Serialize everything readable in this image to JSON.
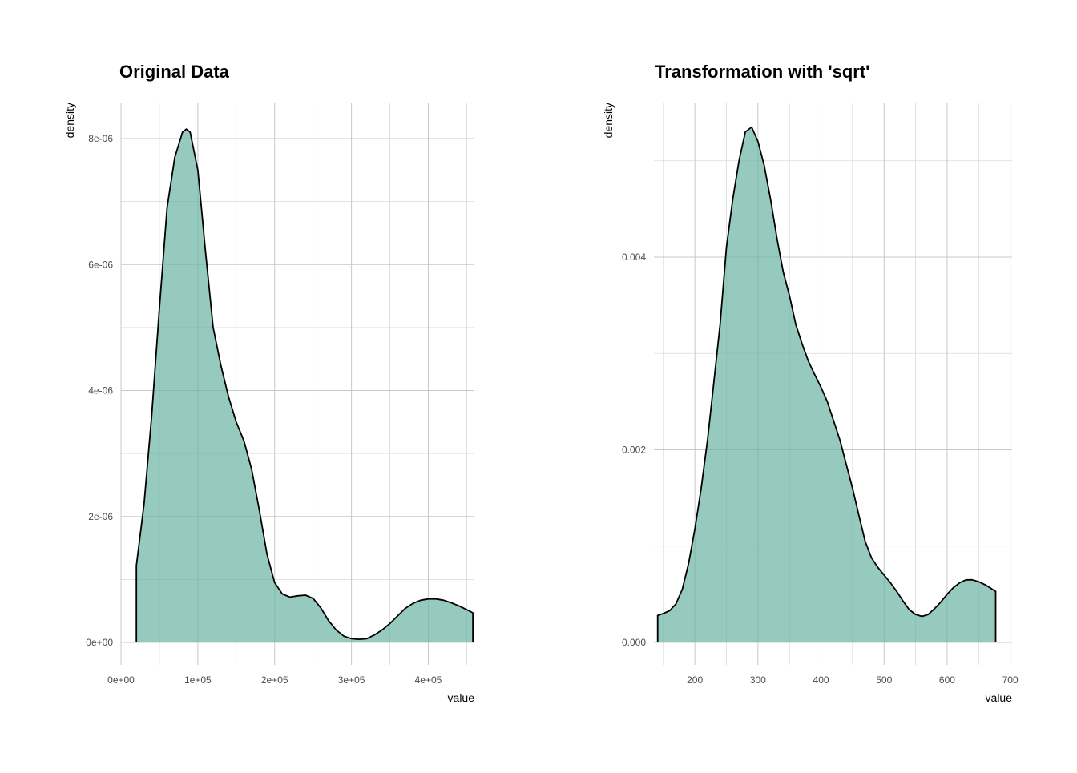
{
  "chart_data": [
    {
      "type": "area",
      "title": "Original Data",
      "xlabel": "value",
      "ylabel": "density",
      "xlim": [
        0,
        460000.0
      ],
      "ylim": [
        0,
        8.2e-06
      ],
      "x_ticks": [
        0,
        100000,
        200000,
        300000,
        400000
      ],
      "x_tick_labels": [
        "0e+00",
        "1e+05",
        "2e+05",
        "3e+05",
        "4e+05"
      ],
      "y_ticks": [
        0,
        2e-06,
        4e-06,
        6e-06,
        8e-06
      ],
      "y_tick_labels": [
        "0e+00",
        "2e-06",
        "4e-06",
        "6e-06",
        "8e-06"
      ],
      "grid": true,
      "fill_color": "#69b3a2",
      "line_color": "#000000",
      "series": [
        {
          "x": [
            20000,
            30000,
            40000,
            50000,
            60000,
            70000,
            80000,
            85000,
            90000,
            100000,
            110000,
            120000,
            130000,
            140000,
            150000,
            160000,
            170000,
            180000,
            190000,
            200000,
            210000,
            220000,
            230000,
            240000,
            250000,
            260000,
            270000,
            280000,
            290000,
            300000,
            310000,
            320000,
            330000,
            340000,
            350000,
            360000,
            370000,
            380000,
            390000,
            400000,
            410000,
            420000,
            430000,
            440000,
            450000,
            458000
          ],
          "y": [
            1.22e-06,
            2.2e-06,
            3.6e-06,
            5.3e-06,
            6.9e-06,
            7.7e-06,
            8.1e-06,
            8.15e-06,
            8.1e-06,
            7.5e-06,
            6.2e-06,
            5e-06,
            4.4e-06,
            3.9e-06,
            3.5e-06,
            3.2e-06,
            2.75e-06,
            2.1e-06,
            1.4e-06,
            9.5e-07,
            7.7e-07,
            7.2e-07,
            7.4e-07,
            7.5e-07,
            7e-07,
            5.5e-07,
            3.5e-07,
            2e-07,
            1e-07,
            6e-08,
            5e-08,
            6e-08,
            1.2e-07,
            2e-07,
            3e-07,
            4.2e-07,
            5.4e-07,
            6.2e-07,
            6.7e-07,
            6.9e-07,
            6.9e-07,
            6.7e-07,
            6.3e-07,
            5.8e-07,
            5.2e-07,
            4.7e-07
          ]
        }
      ]
    },
    {
      "type": "area",
      "title": "Transformation with 'sqrt'",
      "xlabel": "value",
      "ylabel": "density",
      "xlim": [
        135,
        703
      ],
      "ylim": [
        0,
        0.0054
      ],
      "x_ticks": [
        200,
        300,
        400,
        500,
        600,
        700
      ],
      "x_tick_labels": [
        "200",
        "300",
        "400",
        "500",
        "600",
        "700"
      ],
      "y_ticks": [
        0,
        0.002,
        0.004
      ],
      "y_tick_labels": [
        "0.000",
        "0.002",
        "0.004"
      ],
      "grid": true,
      "fill_color": "#69b3a2",
      "line_color": "#000000",
      "series": [
        {
          "x": [
            141,
            150,
            160,
            170,
            180,
            190,
            200,
            210,
            220,
            230,
            240,
            250,
            260,
            270,
            280,
            290,
            300,
            310,
            320,
            330,
            340,
            350,
            360,
            370,
            380,
            390,
            400,
            410,
            420,
            430,
            440,
            450,
            460,
            470,
            480,
            490,
            500,
            510,
            520,
            530,
            540,
            550,
            560,
            570,
            580,
            590,
            600,
            610,
            620,
            630,
            640,
            650,
            660,
            670,
            677
          ],
          "y": [
            0.00028,
            0.0003,
            0.00033,
            0.0004,
            0.00055,
            0.00082,
            0.00118,
            0.0016,
            0.0021,
            0.0027,
            0.0033,
            0.0041,
            0.0046,
            0.005,
            0.0053,
            0.00535,
            0.0052,
            0.00495,
            0.0046,
            0.0042,
            0.00385,
            0.0036,
            0.0033,
            0.0031,
            0.00292,
            0.00278,
            0.00265,
            0.0025,
            0.0023,
            0.0021,
            0.00185,
            0.0016,
            0.00132,
            0.00105,
            0.00088,
            0.00078,
            0.0007,
            0.00062,
            0.00053,
            0.00043,
            0.00034,
            0.00029,
            0.00027,
            0.00029,
            0.00035,
            0.00042,
            0.0005,
            0.00057,
            0.00062,
            0.00065,
            0.00065,
            0.00063,
            0.0006,
            0.00056,
            0.00053
          ]
        }
      ]
    }
  ]
}
